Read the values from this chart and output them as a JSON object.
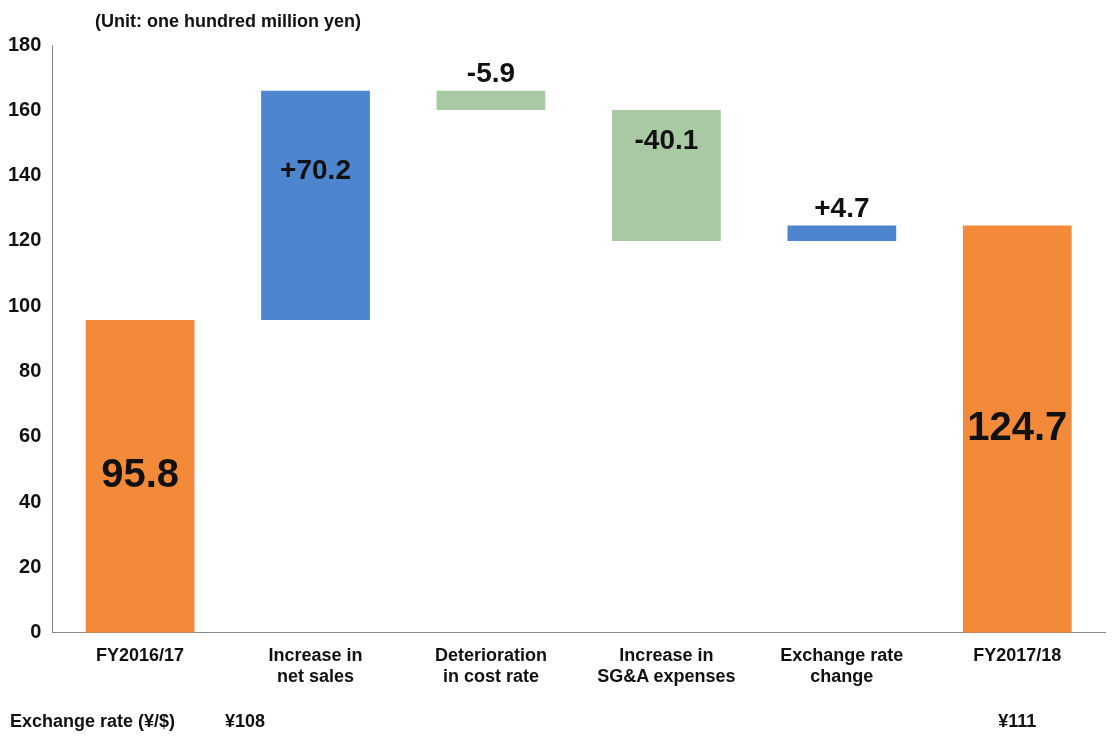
{
  "chart_data": {
    "type": "bar",
    "categories": [
      "FY2016/17",
      "Increase in net sales",
      "Deterioration in cost rate",
      "Increase in SG&A expenses",
      "Exchange rate change",
      "FY2017/18"
    ],
    "base": [
      0,
      95.8,
      166,
      160.1,
      120,
      0
    ],
    "values": [
      95.8,
      70.2,
      -5.9,
      -40.1,
      4.7,
      124.7
    ],
    "colors": [
      "#f28a3a",
      "#4d85cf",
      "#a9c9a4",
      "#a9c9a4",
      "#4d85cf",
      "#f28a3a"
    ],
    "value_labels": [
      "95.8",
      "+70.2",
      "-5.9",
      "-40.1",
      "+4.7",
      "124.7"
    ],
    "ylim": [
      0,
      180
    ],
    "yticks": [
      0,
      20,
      40,
      60,
      80,
      100,
      120,
      140,
      160,
      180
    ],
    "grid": false,
    "legend": false,
    "annotations": [
      "(Unit: one hundred million yen)",
      "Exchange rate (¥/$)",
      "¥108",
      "¥111"
    ]
  }
}
